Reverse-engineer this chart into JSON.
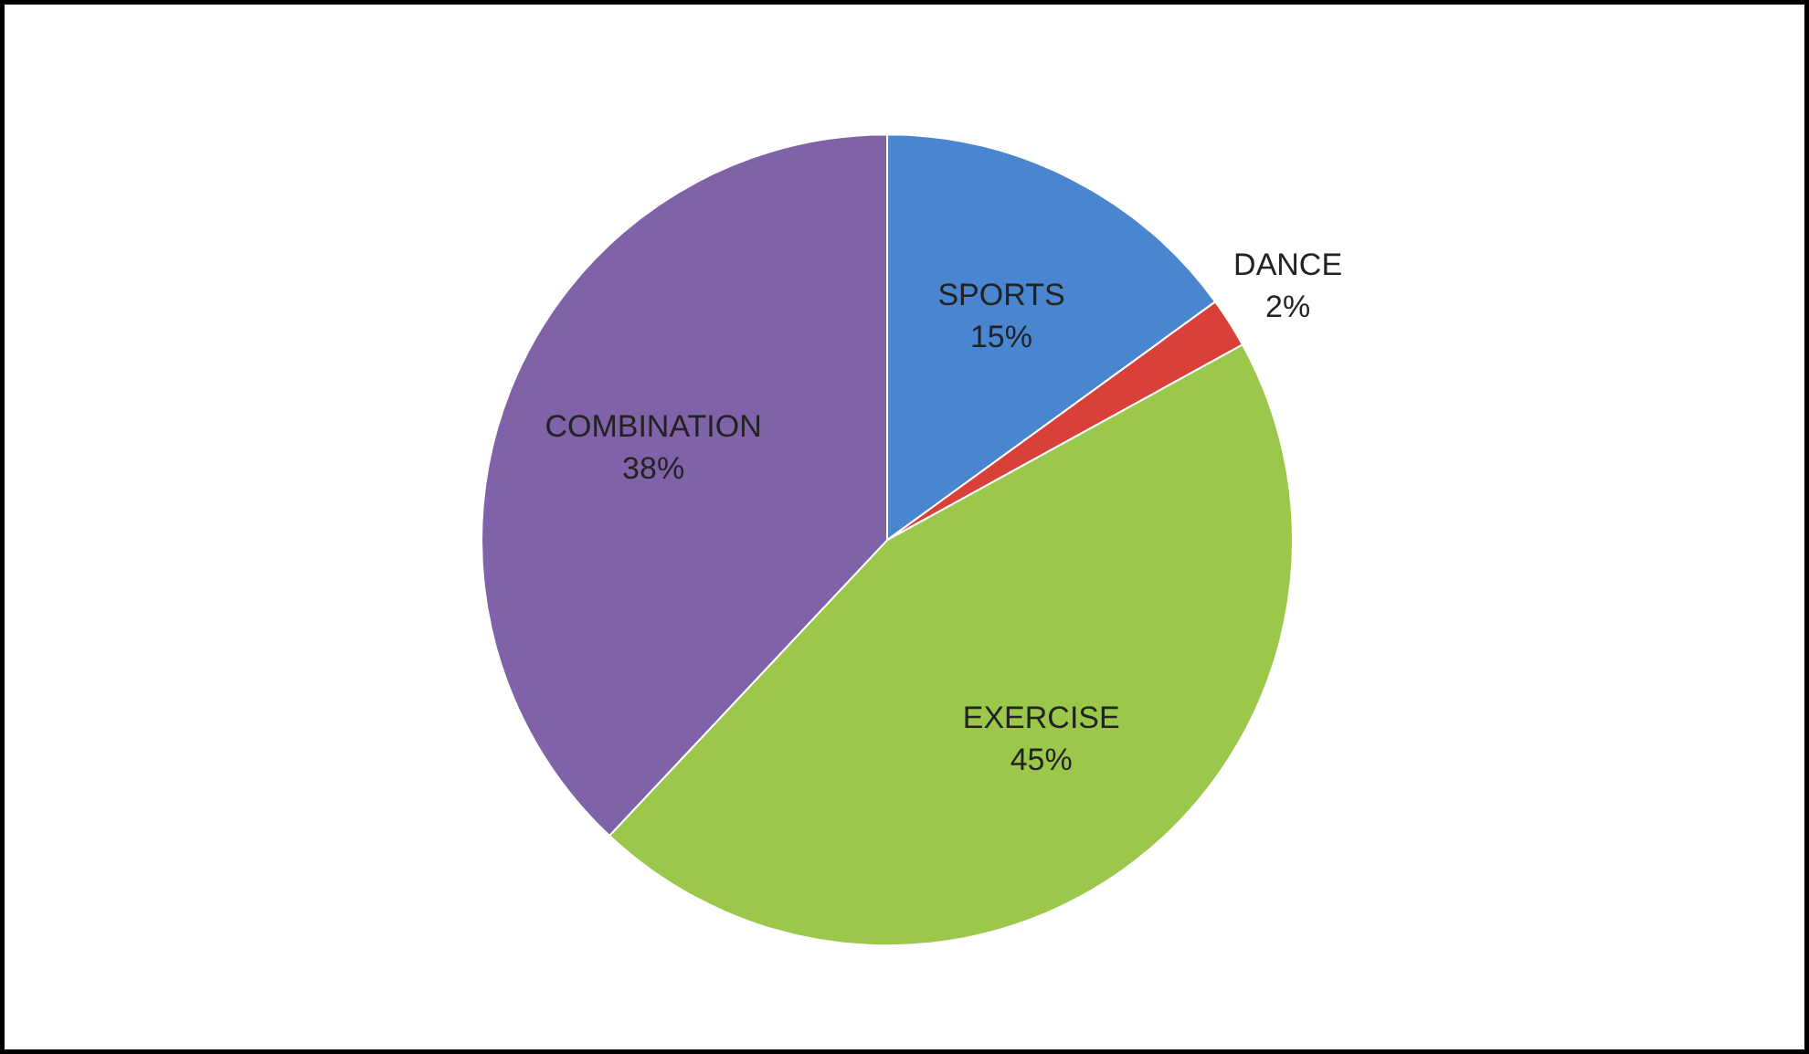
{
  "chart_data": {
    "type": "pie",
    "categories": [
      "SPORTS",
      "DANCE",
      "EXERCISE",
      "COMBINATION"
    ],
    "values": [
      15,
      2,
      45,
      38
    ],
    "colors": [
      "#4a86cf",
      "#d9403a",
      "#9bc84a",
      "#8062a8"
    ],
    "value_labels": [
      "15%",
      "2%",
      "45%",
      "38%"
    ]
  }
}
